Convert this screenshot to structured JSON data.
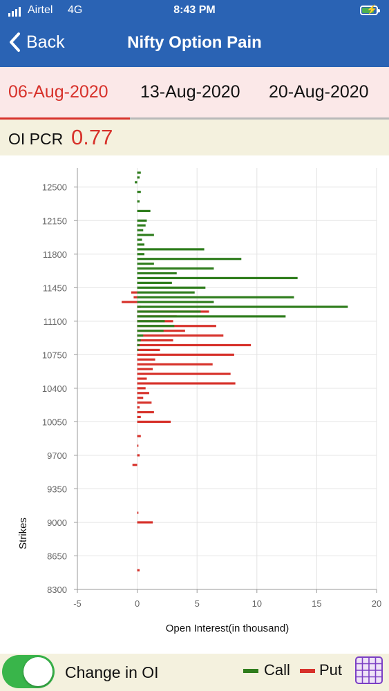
{
  "status_bar": {
    "carrier": "Airtel",
    "network": "4G",
    "time": "8:43 PM"
  },
  "header": {
    "back_label": "Back",
    "title": "Nifty Option Pain"
  },
  "tabs": [
    {
      "label": "06-Aug-2020",
      "active": true
    },
    {
      "label": "13-Aug-2020",
      "active": false
    },
    {
      "label": "20-Aug-2020",
      "active": false
    }
  ],
  "pcr": {
    "label": "OI PCR",
    "value": "0.77"
  },
  "footer": {
    "toggle_label": "Change in OI",
    "toggle_on": true,
    "legend_call": "Call",
    "legend_put": "Put"
  },
  "colors": {
    "header": "#2a63b4",
    "call": "#2f7d1d",
    "put": "#d7322b",
    "toggle_on": "#39b54a"
  },
  "icons": {
    "back": "chevron-left-icon",
    "grid": "grid-icon",
    "battery": "battery-charging-icon",
    "signal": "signal-icon"
  },
  "chart_data": {
    "type": "bar",
    "orientation": "horizontal",
    "xlabel": "Open Interest(in thousand)",
    "ylabel": "Strikes",
    "xlim": [
      -5,
      20
    ],
    "ylim": [
      8300,
      12700
    ],
    "x_ticks": [
      -5,
      0,
      5,
      10,
      15,
      20
    ],
    "y_ticks": [
      8300,
      8650,
      9000,
      9350,
      9700,
      10050,
      10400,
      10750,
      11100,
      11450,
      11800,
      12150,
      12500
    ],
    "grid": true,
    "series": [
      {
        "name": "Call",
        "points": [
          [
            12650,
            0.3
          ],
          [
            12600,
            0.2
          ],
          [
            12550,
            -0.2
          ],
          [
            12450,
            0.3
          ],
          [
            12350,
            0.2
          ],
          [
            12250,
            1.1
          ],
          [
            12150,
            0.8
          ],
          [
            12100,
            0.7
          ],
          [
            12050,
            0.5
          ],
          [
            12000,
            1.4
          ],
          [
            11950,
            0.4
          ],
          [
            11900,
            0.6
          ],
          [
            11850,
            5.6
          ],
          [
            11800,
            0.6
          ],
          [
            11750,
            8.7
          ],
          [
            11700,
            1.4
          ],
          [
            11650,
            6.4
          ],
          [
            11600,
            3.3
          ],
          [
            11550,
            13.4
          ],
          [
            11500,
            2.9
          ],
          [
            11450,
            5.7
          ],
          [
            11400,
            4.8
          ],
          [
            11350,
            13.1
          ],
          [
            11300,
            6.4
          ],
          [
            11250,
            17.6
          ],
          [
            11200,
            5.3
          ],
          [
            11150,
            12.4
          ],
          [
            11100,
            2.3
          ],
          [
            11050,
            3.1
          ],
          [
            11000,
            2.2
          ],
          [
            10950,
            0.5
          ],
          [
            10900,
            0.3
          ],
          [
            10850,
            0.2
          ],
          [
            10800,
            0.1
          ]
        ]
      },
      {
        "name": "Put",
        "points": [
          [
            11400,
            -0.5
          ],
          [
            11350,
            -0.3
          ],
          [
            11300,
            -1.3
          ],
          [
            11250,
            0.3
          ],
          [
            11200,
            6.0
          ],
          [
            11150,
            3.3
          ],
          [
            11100,
            3.0
          ],
          [
            11050,
            6.6
          ],
          [
            11000,
            4.0
          ],
          [
            10950,
            7.2
          ],
          [
            10900,
            3.0
          ],
          [
            10850,
            9.5
          ],
          [
            10800,
            1.9
          ],
          [
            10750,
            8.1
          ],
          [
            10700,
            1.5
          ],
          [
            10650,
            6.3
          ],
          [
            10600,
            1.3
          ],
          [
            10550,
            7.8
          ],
          [
            10500,
            0.8
          ],
          [
            10450,
            8.2
          ],
          [
            10400,
            0.7
          ],
          [
            10350,
            1.0
          ],
          [
            10300,
            0.5
          ],
          [
            10250,
            1.2
          ],
          [
            10200,
            0.2
          ],
          [
            10150,
            1.4
          ],
          [
            10100,
            0.3
          ],
          [
            10050,
            2.8
          ],
          [
            9900,
            0.3
          ],
          [
            9800,
            0.1
          ],
          [
            9700,
            0.2
          ],
          [
            9600,
            -0.4
          ],
          [
            9100,
            0.1
          ],
          [
            9000,
            1.3
          ],
          [
            8500,
            0.2
          ]
        ]
      }
    ]
  }
}
